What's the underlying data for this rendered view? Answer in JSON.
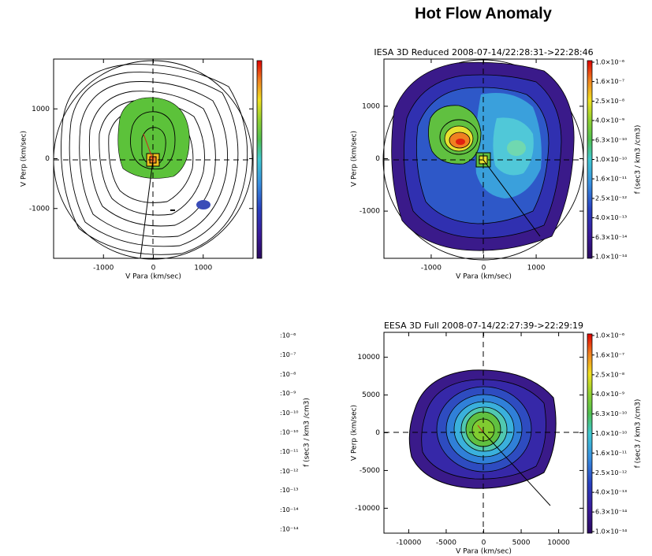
{
  "title": "Hot Flow Anomaly",
  "chart_data": [
    {
      "type": "contour",
      "xlabel": "V Para (km/sec)",
      "ylabel": "V Perp (km/sec)",
      "xlim": [
        -2000,
        2000
      ],
      "ylim": [
        -2000,
        2000
      ],
      "xticks": [
        -1000,
        0,
        1000
      ],
      "yticks": [
        -1000,
        0,
        1000
      ],
      "colorbar": true
    },
    {
      "type": "contour",
      "title": "IESA 3D Reduced 2008-07-14/22:28:31->22:28:46",
      "xlabel": "V Para (km/sec)",
      "ylabel": "V Perp (km/sec)",
      "xlim": [
        -1900,
        1900
      ],
      "ylim": [
        -1900,
        1900
      ],
      "xticks": [
        -1000,
        0,
        1000
      ],
      "yticks": [
        -1000,
        0,
        1000
      ],
      "colorbar": true,
      "zscale": "log",
      "zlim": [
        1e-14,
        1e-06
      ],
      "zlabel": "f (sec3 / km3 /cm3)",
      "zticks": [
        {
          "value": 1e-06,
          "label": "1.0×10⁻⁶"
        },
        {
          "value": 1.6e-07,
          "label": "1.6×10⁻⁷"
        },
        {
          "value": 2.5e-08,
          "label": "2.5×10⁻⁸"
        },
        {
          "value": 4e-09,
          "label": "4.0×10⁻⁹"
        },
        {
          "value": 6.3e-10,
          "label": "6.3×10⁻¹⁰"
        },
        {
          "value": 1e-10,
          "label": "1.0×10⁻¹⁰"
        },
        {
          "value": 1.6e-11,
          "label": "1.6×10⁻¹¹"
        },
        {
          "value": 2.5e-12,
          "label": "2.5×10⁻¹²"
        },
        {
          "value": 4e-13,
          "label": "4.0×10⁻¹³"
        },
        {
          "value": 6.3e-14,
          "label": "6.3×10⁻¹⁴"
        },
        {
          "value": 1e-14,
          "label": "1.0×10⁻¹⁴"
        }
      ]
    },
    {
      "type": "colorbar-labels",
      "zscale": "log",
      "zlim": [
        1e-14,
        1e-06
      ],
      "zlabel": "f (sec3 / km3 /cm3)",
      "zticks": [
        {
          "value": 1e-06,
          "label": ":10⁻⁶"
        },
        {
          "value": 1.6e-07,
          "label": ":10⁻⁷"
        },
        {
          "value": 2.5e-08,
          "label": ":10⁻⁸"
        },
        {
          "value": 4e-09,
          "label": ":10⁻⁹"
        },
        {
          "value": 6.3e-10,
          "label": ":10⁻¹⁰"
        },
        {
          "value": 1e-10,
          "label": ":10⁻¹⁰"
        },
        {
          "value": 1.6e-11,
          "label": ":10⁻¹¹"
        },
        {
          "value": 2.5e-12,
          "label": ":10⁻¹²"
        },
        {
          "value": 4e-13,
          "label": ":10⁻¹³"
        },
        {
          "value": 6.3e-14,
          "label": ":10⁻¹⁴"
        },
        {
          "value": 1e-14,
          "label": ":10⁻¹⁴"
        }
      ]
    },
    {
      "type": "contour",
      "title": "EESA 3D Full 2008-07-14/22:27:39->22:29:19",
      "xlabel": "V Para (km/sec)",
      "ylabel": "V Perp (km/sec)",
      "xlim": [
        -13300,
        13300
      ],
      "ylim": [
        -13300,
        13300
      ],
      "xticks": [
        -10000,
        -5000,
        0,
        5000,
        10000
      ],
      "yticks": [
        -10000,
        -5000,
        0,
        5000,
        10000
      ],
      "colorbar": true,
      "zscale": "log",
      "zlim": [
        1e-14,
        1e-06
      ],
      "zlabel": "f (sec3 / km3 /cm3)",
      "zticks": [
        {
          "value": 1e-06,
          "label": "1.0×10⁻⁶"
        },
        {
          "value": 1.6e-07,
          "label": "1.6×10⁻⁷"
        },
        {
          "value": 2.5e-08,
          "label": "2.5×10⁻⁸"
        },
        {
          "value": 4e-09,
          "label": "4.0×10⁻⁹"
        },
        {
          "value": 6.3e-10,
          "label": "6.3×10⁻¹⁰"
        },
        {
          "value": 1e-10,
          "label": "1.0×10⁻¹⁰"
        },
        {
          "value": 1.6e-11,
          "label": "1.6×10⁻¹¹"
        },
        {
          "value": 2.5e-12,
          "label": "2.5×10⁻¹²"
        },
        {
          "value": 4e-13,
          "label": "4.0×10⁻¹³"
        },
        {
          "value": 6.3e-14,
          "label": "6.3×10⁻¹⁴"
        },
        {
          "value": 1e-14,
          "label": "1.0×10⁻¹⁴"
        }
      ]
    }
  ]
}
